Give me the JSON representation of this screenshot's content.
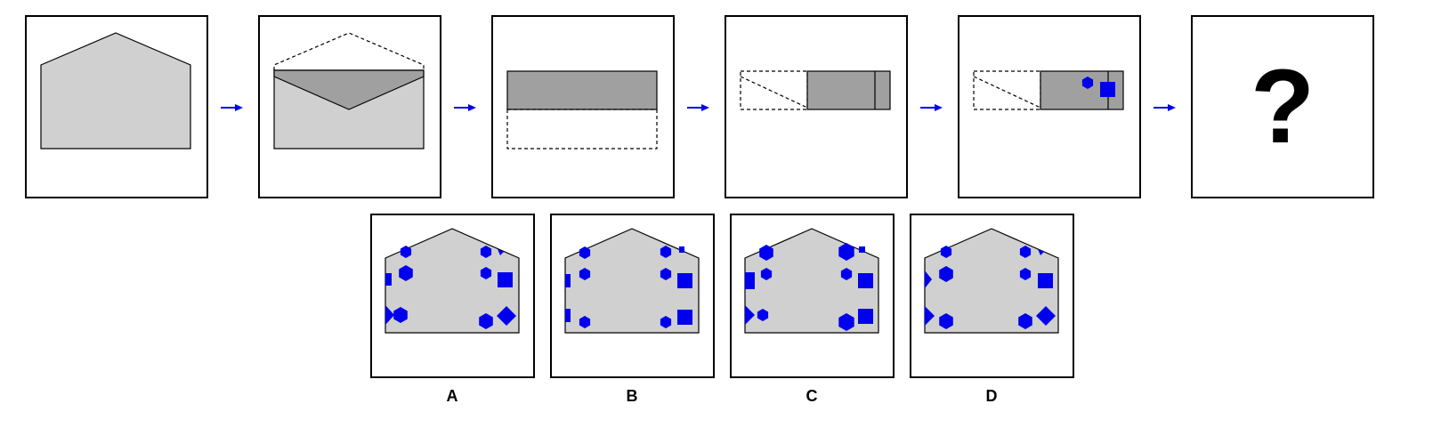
{
  "colors": {
    "paper": "#d0d0d0",
    "flap": "#a0a0a0",
    "shape": "#0000ee",
    "arrow": "#0000ee",
    "outline": "#000000"
  },
  "sequence": {
    "steps": [
      "flat-paper",
      "fold-top-flap-down",
      "fold-bottom-up",
      "fold-left-to-right",
      "punch-holes"
    ],
    "punched_shapes": [
      "hexagon",
      "square"
    ],
    "unknown_symbol": "?"
  },
  "options": [
    {
      "label": "A"
    },
    {
      "label": "B"
    },
    {
      "label": "C"
    },
    {
      "label": "D"
    }
  ]
}
